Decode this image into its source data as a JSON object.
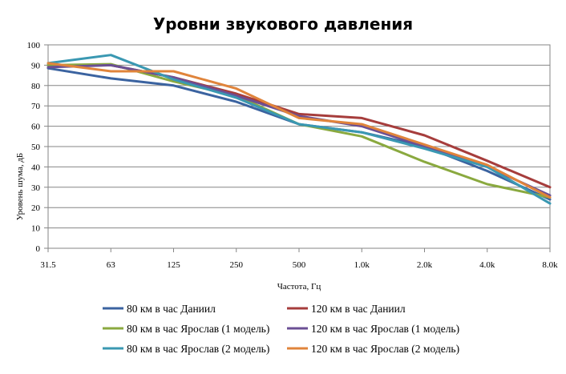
{
  "chart_data": {
    "type": "line",
    "title": "Уровни звукового давления",
    "xlabel": "Частота, Гц",
    "ylabel": "Уровень шума, дБ",
    "categories": [
      "31.5",
      "63",
      "125",
      "250",
      "500",
      "1.0k",
      "2.0k",
      "4.0k",
      "8.0k"
    ],
    "ylim": [
      0,
      100
    ],
    "yticks": [
      0,
      10,
      20,
      30,
      40,
      50,
      60,
      70,
      80,
      90,
      100
    ],
    "grid": true,
    "legend_position": "bottom",
    "series": [
      {
        "name": "80 км в час Даниил",
        "color": "#3b63a0",
        "values": [
          88.5,
          83.5,
          80,
          72,
          61,
          57,
          50,
          38,
          24
        ]
      },
      {
        "name": "120 км в час Даниил",
        "color": "#a63d3c",
        "values": [
          90,
          90,
          84,
          76,
          66,
          64,
          55.5,
          43,
          30
        ]
      },
      {
        "name": "80 км в час Ярослав (1 модель)",
        "color": "#8aa93f",
        "values": [
          90,
          90.5,
          82,
          75,
          61,
          55,
          42.5,
          31.5,
          25
        ]
      },
      {
        "name": "120 км в час Ярослав (1 модель)",
        "color": "#6b4f94",
        "values": [
          89,
          90,
          84,
          75,
          65,
          60,
          50,
          40,
          26
        ]
      },
      {
        "name": "80 км в час Ярослав (2 модель)",
        "color": "#3a98b2",
        "values": [
          91,
          95,
          83,
          74,
          61,
          57,
          49,
          40,
          22
        ]
      },
      {
        "name": "120 км в час Ярослав (2 модель)",
        "color": "#e0843b",
        "values": [
          91,
          87,
          87,
          78.5,
          64,
          61,
          51,
          41,
          25
        ]
      }
    ]
  }
}
